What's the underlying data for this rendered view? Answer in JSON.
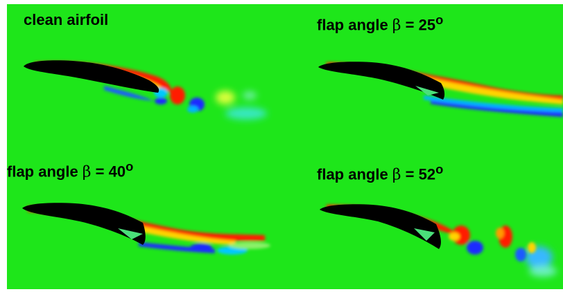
{
  "figure": {
    "background_color": "#1ee61a",
    "vorticity_positive_color": "#ff1a00",
    "vorticity_negative_color": "#1a2aff",
    "airfoil_color": "#000000",
    "panels": [
      {
        "id": "clean",
        "label": "clean airfoil"
      },
      {
        "id": "flap25",
        "label_prefix": "flap angle ",
        "symbol": "β",
        "label_suffix": " = 25",
        "degree": "o"
      },
      {
        "id": "flap40",
        "label_prefix": "flap angle ",
        "symbol": "β",
        "label_suffix": " = 40",
        "degree": "o"
      },
      {
        "id": "flap52",
        "label_prefix": "flap angle ",
        "symbol": "β",
        "label_suffix": " = 52",
        "degree": "o"
      }
    ]
  }
}
